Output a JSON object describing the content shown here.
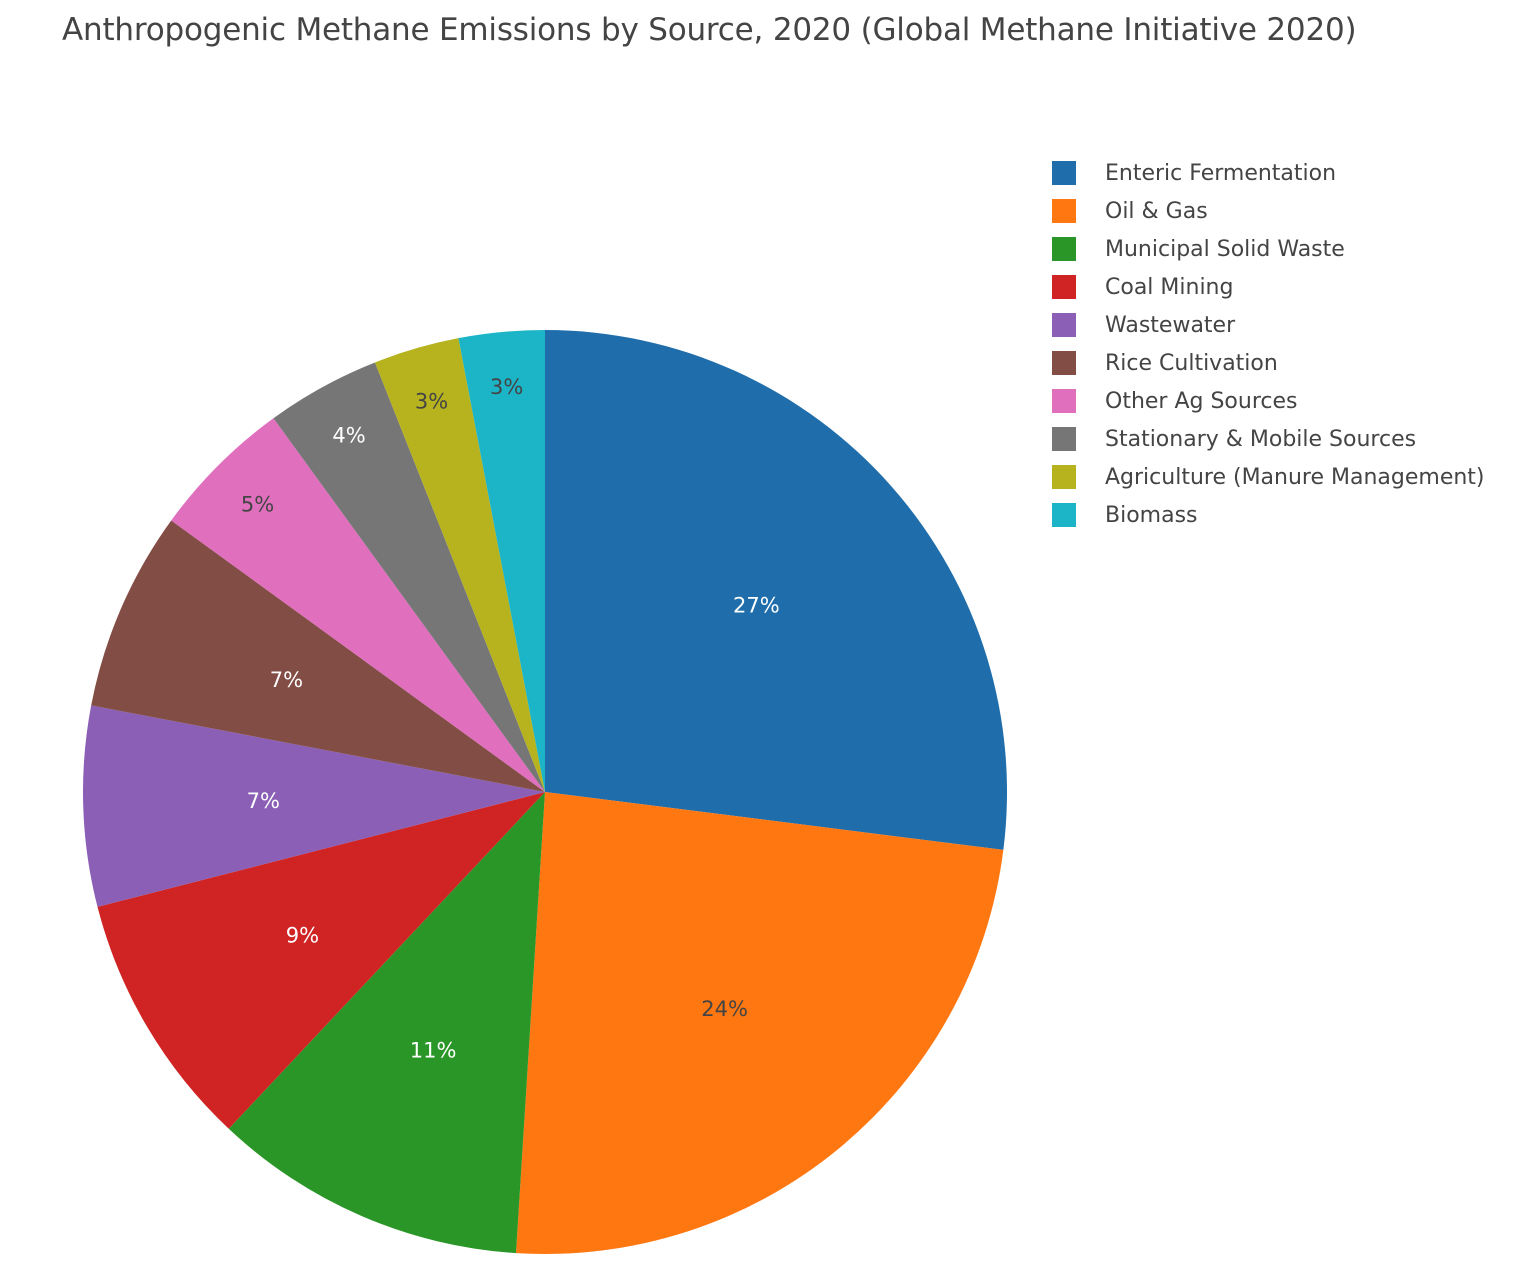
{
  "chart_data": {
    "type": "pie",
    "title": "Anthropogenic Methane Emissions by Source, 2020 (Global Methane Initiative 2020)",
    "slices": [
      {
        "name": "Enteric Fermentation",
        "value": 27,
        "label": "27%",
        "color": "#1f6eab",
        "label_color": "#ffffff"
      },
      {
        "name": "Oil & Gas",
        "value": 24,
        "label": "24%",
        "color": "#ff7711",
        "label_color": "#444444"
      },
      {
        "name": "Municipal Solid Waste",
        "value": 11,
        "label": "11%",
        "color": "#2a9627",
        "label_color": "#ffffff"
      },
      {
        "name": "Coal Mining",
        "value": 9,
        "label": "9%",
        "color": "#d02324",
        "label_color": "#ffffff"
      },
      {
        "name": "Wastewater",
        "value": 7,
        "label": "7%",
        "color": "#8a5fb5",
        "label_color": "#ffffff"
      },
      {
        "name": "Rice Cultivation",
        "value": 7,
        "label": "7%",
        "color": "#824d44",
        "label_color": "#ffffff"
      },
      {
        "name": "Other Ag Sources",
        "value": 5,
        "label": "5%",
        "color": "#e06fbe",
        "label_color": "#444444"
      },
      {
        "name": "Stationary & Mobile Sources",
        "value": 4,
        "label": "4%",
        "color": "#767676",
        "label_color": "#ffffff"
      },
      {
        "name": "Agriculture (Manure Management)",
        "value": 3,
        "label": "3%",
        "color": "#b6b31f",
        "label_color": "#444444"
      },
      {
        "name": "Biomass",
        "value": 3,
        "label": "3%",
        "color": "#1cb4c7",
        "label_color": "#444444"
      }
    ],
    "direction": "clockwise",
    "start": "top",
    "legend_position": "top-right"
  }
}
